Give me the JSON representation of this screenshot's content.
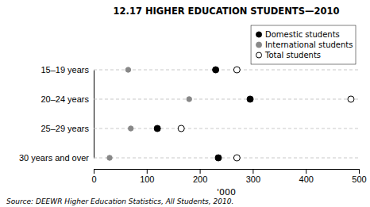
{
  "chart_data": {
    "type": "dot",
    "title": "12.17   HIGHER EDUCATION STUDENTS—2010",
    "categories": [
      "15–19 years",
      "20–24 years",
      "25–29 years",
      "30 years and over"
    ],
    "series": [
      {
        "name": "Domestic students",
        "color": "#000000",
        "marker": "circle",
        "values": [
          230,
          295,
          120,
          235
        ]
      },
      {
        "name": "International students",
        "color": "#888888",
        "marker": "circle",
        "values": [
          65,
          180,
          70,
          30
        ]
      },
      {
        "name": "Total students",
        "color": "#000000",
        "marker": "open_circle",
        "values": [
          270,
          485,
          165,
          270
        ]
      }
    ],
    "orientation": "horizontal",
    "xlabel": "'000",
    "xlim": [
      0,
      500
    ],
    "xticks": [
      0,
      100,
      200,
      300,
      400,
      500
    ],
    "grid": true,
    "legend": "upper right",
    "source": "Source: DEEWR Higher Education Statistics, All Students, 2010."
  }
}
